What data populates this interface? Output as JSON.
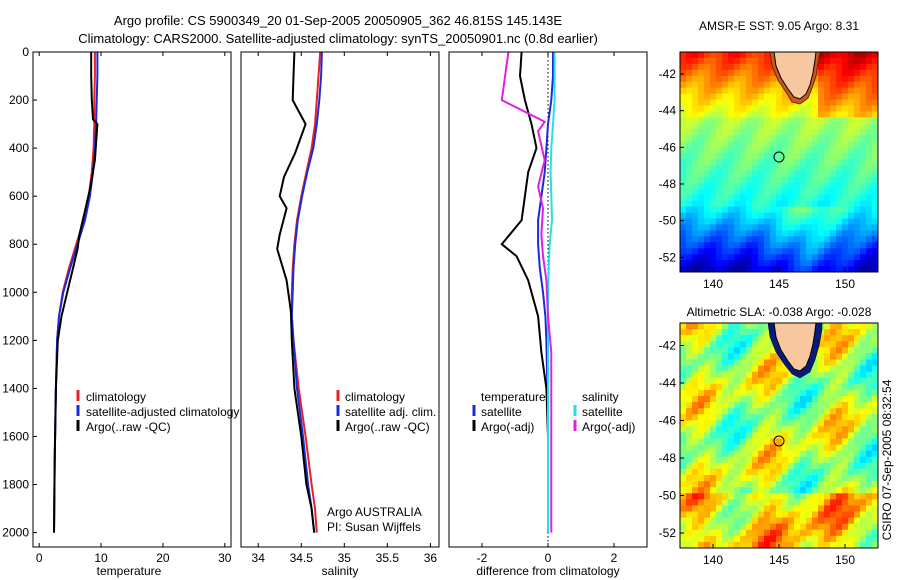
{
  "header": {
    "line1": "Argo profile: CS 5900349_20 01-Sep-2005 20050905_362 46.815S 145.143E",
    "line2": "Climatology: CARS2000. Satellite-adjusted climatology: synTS_20050901.nc (0.8d earlier)"
  },
  "colors": {
    "climatology": "#e8202a",
    "satellite": "#1a2bd8",
    "argo": "#000000",
    "satellite_salinity": "#22e0e8",
    "argo_salinity_adj": "#e020e0"
  },
  "chart_data": [
    {
      "type": "line",
      "panel": "temperature",
      "xlabel": "temperature",
      "ylabel": "",
      "xlim": [
        -1,
        31
      ],
      "ylim": [
        2060,
        0
      ],
      "xticks": [
        0,
        10,
        20,
        30
      ],
      "yticks": [
        0,
        200,
        400,
        600,
        800,
        1000,
        1200,
        1400,
        1600,
        1800,
        2000
      ],
      "legend": {
        "placement": "lower-center",
        "entries": [
          "climatology",
          "satellite-adjusted climatology",
          "Argo(..raw -QC)"
        ]
      },
      "series": [
        {
          "name": "climatology",
          "color": "#e8202a",
          "x": [
            9.0,
            9.0,
            8.9,
            8.9,
            8.8,
            8.5,
            8.0,
            7.2,
            6.0,
            4.8,
            3.8,
            3.2,
            2.9,
            2.7,
            2.5,
            2.4
          ],
          "y": [
            0,
            100,
            200,
            300,
            400,
            500,
            600,
            700,
            800,
            900,
            1000,
            1100,
            1200,
            1400,
            1700,
            2000
          ]
        },
        {
          "name": "satellite-adjusted climatology",
          "color": "#1a2bd8",
          "x": [
            9.4,
            9.4,
            9.3,
            9.2,
            9.0,
            8.7,
            8.2,
            7.4,
            6.2,
            5.0,
            3.9,
            3.2,
            2.9,
            2.7,
            2.5,
            2.4
          ],
          "y": [
            0,
            100,
            200,
            300,
            400,
            500,
            600,
            700,
            800,
            900,
            1000,
            1100,
            1200,
            1400,
            1700,
            2000
          ]
        },
        {
          "name": "Argo(..raw -QC)",
          "color": "#000000",
          "x": [
            8.4,
            8.4,
            8.5,
            8.7,
            9.4,
            9.0,
            8.3,
            7.5,
            6.5,
            6.2,
            5.0,
            3.6,
            3.0,
            2.7,
            2.5,
            2.4
          ],
          "y": [
            0,
            100,
            200,
            280,
            300,
            450,
            560,
            650,
            760,
            820,
            950,
            1100,
            1200,
            1400,
            1700,
            2000
          ]
        }
      ]
    },
    {
      "type": "line",
      "panel": "salinity",
      "xlabel": "salinity",
      "ylabel": "",
      "xlim": [
        33.8,
        36.1
      ],
      "ylim": [
        2060,
        0
      ],
      "xticks": [
        34,
        34.5,
        35,
        35.5,
        36
      ],
      "legend": {
        "placement": "lower-center",
        "entries": [
          "climatology",
          "satellite adj. clim.",
          "Argo(..raw -QC)"
        ]
      },
      "annotation": [
        "Argo AUSTRALIA",
        "PI: Susan Wijffels"
      ],
      "series": [
        {
          "name": "climatology",
          "color": "#e8202a",
          "x": [
            34.72,
            34.7,
            34.68,
            34.66,
            34.62,
            34.56,
            34.5,
            34.45,
            34.42,
            34.4,
            34.39,
            34.39,
            34.41,
            34.47,
            34.55,
            34.62,
            34.66,
            34.68
          ],
          "y": [
            0,
            100,
            200,
            300,
            400,
            500,
            600,
            700,
            800,
            900,
            1000,
            1100,
            1200,
            1400,
            1600,
            1800,
            1900,
            2000
          ]
        },
        {
          "name": "satellite adj. clim.",
          "color": "#1a2bd8",
          "x": [
            34.74,
            34.73,
            34.71,
            34.68,
            34.64,
            34.57,
            34.51,
            34.46,
            34.43,
            34.41,
            34.4,
            34.39,
            34.41,
            34.45,
            34.52,
            34.58,
            34.62,
            34.65
          ],
          "y": [
            0,
            100,
            200,
            300,
            400,
            500,
            600,
            700,
            800,
            900,
            1000,
            1100,
            1200,
            1400,
            1600,
            1800,
            1900,
            2000
          ]
        },
        {
          "name": "Argo(..raw -QC)",
          "color": "#000000",
          "x": [
            34.42,
            34.41,
            34.4,
            34.55,
            34.43,
            34.3,
            34.25,
            34.33,
            34.25,
            34.22,
            34.33,
            34.38,
            34.39,
            34.42,
            34.5,
            34.56,
            34.62,
            34.65
          ],
          "y": [
            0,
            100,
            200,
            300,
            420,
            520,
            600,
            650,
            760,
            820,
            950,
            1080,
            1200,
            1400,
            1600,
            1800,
            1900,
            2000
          ]
        }
      ]
    },
    {
      "type": "line",
      "panel": "difference",
      "xlabel": "difference from climatology",
      "ylabel": "",
      "xlim": [
        -3,
        3
      ],
      "ylim": [
        2060,
        0
      ],
      "xticks": [
        -2,
        0,
        2
      ],
      "legend": {
        "placement": "lower-center",
        "entries": [
          "temperature",
          "satellite",
          "Argo(-adj)",
          "salinity",
          "satellite",
          "Argo(-adj)"
        ]
      },
      "series": [
        {
          "name": "satellite",
          "group": "temperature",
          "color": "#1a2bd8",
          "x": [
            0.15,
            0.15,
            0.1,
            0.0,
            -0.05,
            -0.1,
            -0.2,
            -0.3,
            -0.3,
            -0.25,
            -0.15,
            -0.08,
            -0.05,
            -0.02,
            0.0,
            0.0,
            0.0
          ],
          "y": [
            0,
            100,
            200,
            300,
            400,
            500,
            600,
            700,
            800,
            900,
            1000,
            1100,
            1200,
            1400,
            1600,
            1800,
            2000
          ]
        },
        {
          "name": "Argo(-adj)",
          "group": "temperature",
          "color": "#000000",
          "x": [
            -0.8,
            -0.85,
            -0.7,
            -0.5,
            -0.35,
            -0.6,
            -0.7,
            -0.8,
            -1.4,
            -0.95,
            -0.6,
            -0.3,
            -0.2,
            -0.05,
            0.0,
            0.0,
            0.0
          ],
          "y": [
            0,
            100,
            200,
            300,
            400,
            500,
            600,
            700,
            800,
            850,
            950,
            1100,
            1250,
            1400,
            1600,
            1800,
            2000
          ]
        },
        {
          "name": "satellite",
          "group": "salinity",
          "color": "#22e0e8",
          "x": [
            0.2,
            0.2,
            0.2,
            0.15,
            0.1,
            0.08,
            0.1,
            0.12,
            0.05,
            0.02,
            0.0,
            0.0,
            0.0,
            0.0,
            0.0,
            0.0,
            0.0
          ],
          "y": [
            0,
            100,
            200,
            300,
            400,
            500,
            600,
            700,
            800,
            900,
            1000,
            1100,
            1200,
            1400,
            1600,
            1800,
            2000
          ]
        },
        {
          "name": "Argo(-adj)",
          "group": "salinity",
          "color": "#e020e0",
          "x": [
            -1.2,
            -1.3,
            -1.4,
            -0.1,
            -0.3,
            -0.1,
            -0.3,
            -0.15,
            -0.2,
            -0.15,
            -0.05,
            0.0,
            0.1,
            0.1,
            0.1,
            0.1,
            0.1
          ],
          "y": [
            0,
            100,
            200,
            290,
            330,
            450,
            560,
            650,
            760,
            850,
            950,
            1100,
            1250,
            1400,
            1600,
            1800,
            2000
          ]
        }
      ]
    },
    {
      "type": "heatmap",
      "panel": "sst-map",
      "title": "AMSR-E SST: 9.05 Argo: 8.31",
      "xlim": [
        137.5,
        152.5
      ],
      "ylim": [
        -52.8,
        -40.8
      ],
      "xticks": [
        140,
        145,
        150
      ],
      "yticks": [
        -42,
        -44,
        -46,
        -48,
        -50,
        -52
      ],
      "marker": {
        "lon": 145.143,
        "lat": -46.815
      }
    },
    {
      "type": "heatmap",
      "panel": "sla-map",
      "title": "Altimetric SLA: -0.038 Argo: -0.028",
      "xlim": [
        137.5,
        152.5
      ],
      "ylim": [
        -52.8,
        -40.8
      ],
      "xticks": [
        140,
        145,
        150
      ],
      "yticks": [
        -42,
        -44,
        -46,
        -48,
        -50,
        -52
      ],
      "marker": {
        "lon": 145.143,
        "lat": -46.815
      }
    }
  ],
  "footer": {
    "credit": "CSIRO 07-Sep-2005 08:32:54"
  }
}
